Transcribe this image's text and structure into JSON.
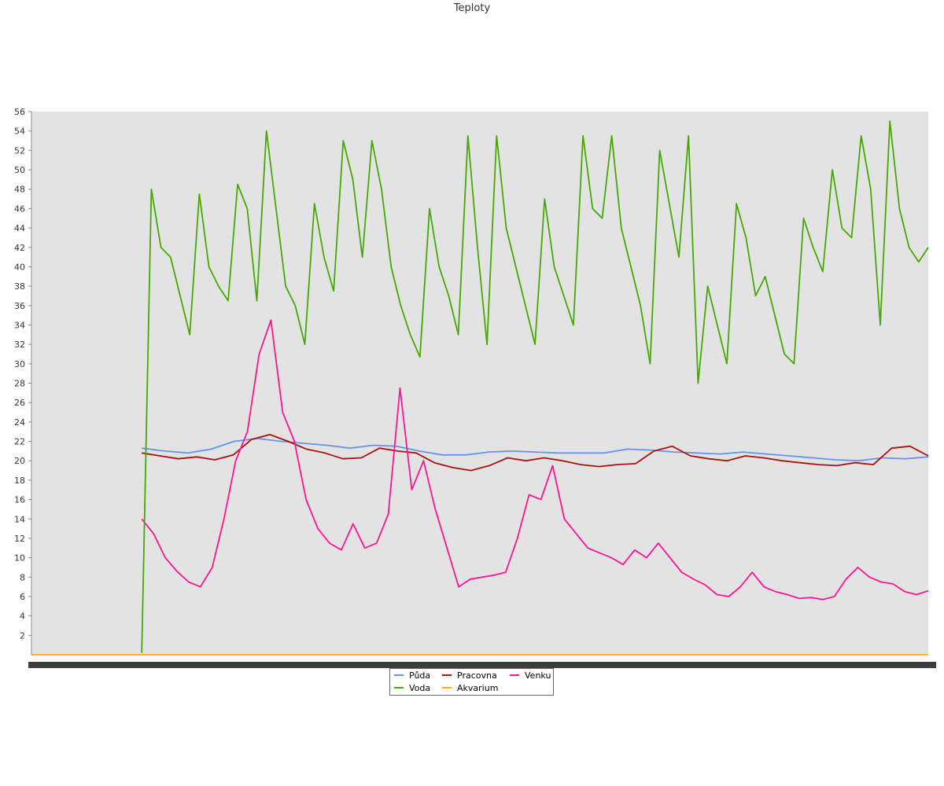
{
  "title": "Teploty",
  "chart_data": {
    "type": "line",
    "title": "Teploty",
    "xlabel": "",
    "ylabel": "",
    "ylim": [
      0,
      56
    ],
    "yticks": [
      "2",
      "4",
      "6",
      "8",
      "10",
      "12",
      "14",
      "16",
      "18",
      "20",
      "22",
      "24",
      "26",
      "28",
      "30",
      "32",
      "34",
      "36",
      "38",
      "40",
      "42",
      "44",
      "46",
      "48",
      "50",
      "52",
      "54",
      "56"
    ],
    "grid": false,
    "legend_position": "bottom-center",
    "x_data_start": 0.123,
    "series": [
      {
        "name": "Půda",
        "color": "#6495ed",
        "values": [
          21.3,
          21.0,
          20.8,
          21.2,
          22.0,
          22.3,
          22.0,
          21.8,
          21.6,
          21.3,
          21.6,
          21.5,
          21.0,
          20.6,
          20.6,
          20.9,
          21.0,
          20.9,
          20.8,
          20.8,
          20.8,
          21.2,
          21.1,
          20.9,
          20.8,
          20.7,
          20.9,
          20.7,
          20.5,
          20.3,
          20.1,
          20.0,
          20.3,
          20.2,
          20.4
        ]
      },
      {
        "name": "Voda",
        "color": "#44aa00",
        "values": [
          0.2,
          48.0,
          42.0,
          41.0,
          37.0,
          33.0,
          47.5,
          40.0,
          38.0,
          36.5,
          48.5,
          46.0,
          36.5,
          54.0,
          46.0,
          38.0,
          36.0,
          32.0,
          46.5,
          41.0,
          37.5,
          53.0,
          49.0,
          41.0,
          53.0,
          48.0,
          40.0,
          36.0,
          33.0,
          30.7,
          46.0,
          40.0,
          37.0,
          33.0,
          53.5,
          42.0,
          32.0,
          53.5,
          44.0,
          40.0,
          36.0,
          32.0,
          47.0,
          40.0,
          37.0,
          34.0,
          53.5,
          46.0,
          45.0,
          53.5,
          44.0,
          40.0,
          36.0,
          30.0,
          52.0,
          46.5,
          41.0,
          53.5,
          28.0,
          38.0,
          34.0,
          30.0,
          46.5,
          43.0,
          37.0,
          39.0,
          35.0,
          31.0,
          30.0,
          45.0,
          42.0,
          39.5,
          50.0,
          44.0,
          43.0,
          53.5,
          48.0,
          34.0,
          55.0,
          46.0,
          42.0,
          40.5,
          42.0
        ]
      },
      {
        "name": "Pracovna",
        "color": "#aa1111",
        "values": [
          20.8,
          20.5,
          20.2,
          20.4,
          20.1,
          20.6,
          22.2,
          22.7,
          22.0,
          21.2,
          20.8,
          20.2,
          20.3,
          21.3,
          21.0,
          20.8,
          19.8,
          19.3,
          19.0,
          19.5,
          20.3,
          20.0,
          20.3,
          20.0,
          19.6,
          19.4,
          19.6,
          19.7,
          21.0,
          21.5,
          20.5,
          20.2,
          20.0,
          20.5,
          20.3,
          20.0,
          19.8,
          19.6,
          19.5,
          19.8,
          19.6,
          21.3,
          21.5,
          20.5
        ]
      },
      {
        "name": "Akvarium",
        "color": "#ffaa00",
        "values": [
          0.0,
          0.0,
          0.0,
          0.0,
          0.0,
          0.0,
          0.0,
          0.0,
          0.0,
          0.0,
          0.0,
          0.0,
          0.0,
          0.0,
          0.0,
          0.0,
          0.0,
          0.0,
          0.0,
          0.0
        ]
      },
      {
        "name": "Venku",
        "color": "#ff1493",
        "values": [
          14.0,
          12.5,
          10.0,
          8.6,
          7.5,
          7.0,
          9.0,
          14.0,
          20.0,
          23.0,
          31.0,
          34.5,
          25.0,
          22.0,
          16.0,
          13.0,
          11.5,
          10.8,
          13.5,
          11.0,
          11.5,
          14.5,
          27.5,
          17.0,
          20.0,
          15.0,
          11.0,
          7.0,
          7.8,
          8.0,
          8.2,
          8.5,
          12.0,
          16.5,
          16.0,
          19.5,
          14.0,
          12.5,
          11.0,
          10.5,
          10.0,
          9.3,
          10.8,
          10.0,
          11.5,
          10.0,
          8.5,
          7.8,
          7.2,
          6.2,
          6.0,
          7.0,
          8.5,
          7.0,
          6.5,
          6.2,
          5.8,
          5.9,
          5.7,
          6.0,
          7.8,
          9.0,
          8.0,
          7.5,
          7.3,
          6.5,
          6.2,
          6.6
        ]
      }
    ]
  }
}
